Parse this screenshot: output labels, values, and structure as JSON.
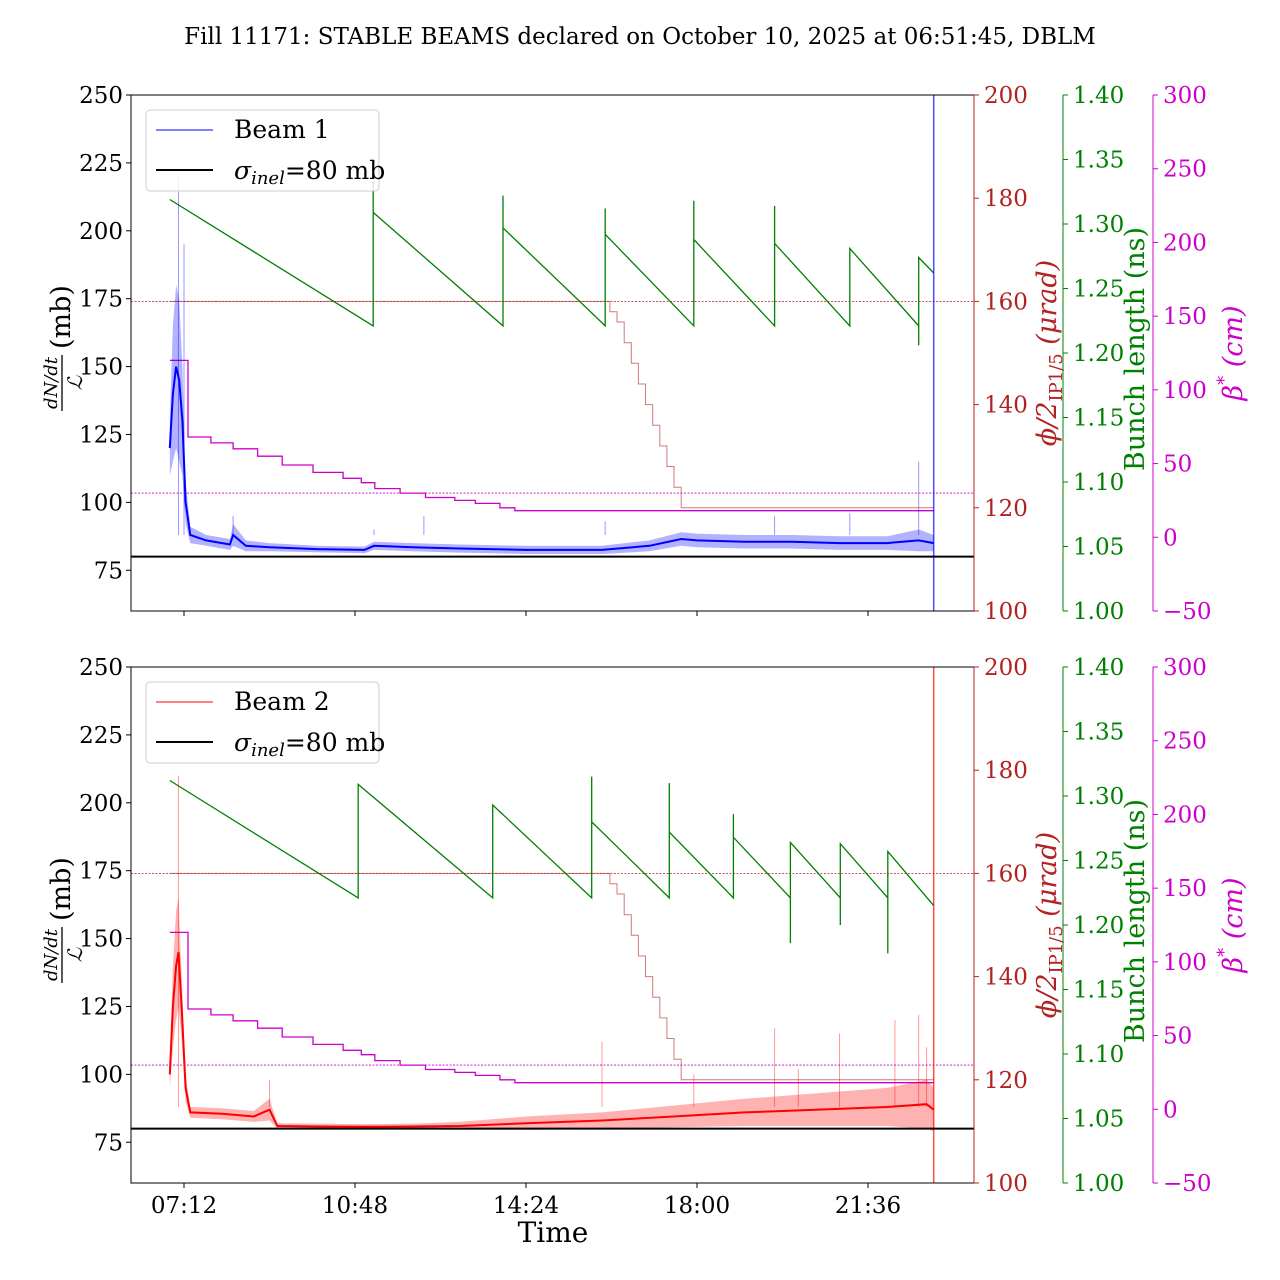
{
  "title": "Fill 11171: STABLE BEAMS declared on October 10, 2025 at 06:51:45, DBLM",
  "colors": {
    "beam1": "#0000ff",
    "beam2": "#ff0000",
    "crossing": "#b22222",
    "bunch": "#008000",
    "beta": "#cc00cc",
    "sigma": "#000000"
  },
  "axes": {
    "x": {
      "label": "Time",
      "ticks": [
        "07:12",
        "10:48",
        "14:24",
        "18:00",
        "21:36"
      ]
    },
    "left": {
      "label_num": "dN/dt",
      "label_den": "ℒ",
      "label_unit": "(mb)",
      "ylim": [
        60,
        250
      ],
      "ticks": [
        "75",
        "100",
        "125",
        "150",
        "175",
        "200",
        "225",
        "250"
      ]
    },
    "crossing": {
      "label_main": "ϕ/2",
      "label_sub": "IP1/5",
      "label_unit": "(μrad)",
      "ylim": [
        100,
        200
      ],
      "ticks": [
        "100",
        "120",
        "140",
        "160",
        "180",
        "200"
      ]
    },
    "bunch": {
      "label": "Bunch length (ns)",
      "ylim": [
        1.0,
        1.4
      ],
      "ticks": [
        "1.00",
        "1.05",
        "1.10",
        "1.15",
        "1.20",
        "1.25",
        "1.30",
        "1.35",
        "1.40"
      ]
    },
    "beta": {
      "label_main": "β",
      "label_sup": "*",
      "label_unit": "(cm)",
      "ylim": [
        -50,
        300
      ],
      "ticks": [
        "−50",
        "0",
        "50",
        "100",
        "150",
        "200",
        "250",
        "300"
      ]
    }
  },
  "chart_data": [
    {
      "type": "line",
      "panel": "top",
      "legend": {
        "placement": "upper-left",
        "beam": "Beam 1",
        "sigma_symbol": "σ",
        "sigma_sub": "inel",
        "sigma_rest": "=80 mb"
      },
      "reference_lines": {
        "sigma_inel_mb": 80,
        "crossing_urad": 160,
        "beta_cm": 30
      },
      "beam": {
        "name": "Beam 1",
        "color_key": "beam1",
        "end_marker": "22:59",
        "points": [
          [
            "06:54",
            120,
            10
          ],
          [
            "06:58",
            140,
            25
          ],
          [
            "07:02",
            150,
            30
          ],
          [
            "07:06",
            145,
            30
          ],
          [
            "07:10",
            130,
            20
          ],
          [
            "07:14",
            100,
            8
          ],
          [
            "07:20",
            88,
            3
          ],
          [
            "07:40",
            86,
            2
          ],
          [
            "08:10",
            84.5,
            2
          ],
          [
            "08:14",
            88,
            4
          ],
          [
            "08:30",
            84,
            2
          ],
          [
            "09:00",
            83.5,
            1.5
          ],
          [
            "10:00",
            82.8,
            1.2
          ],
          [
            "11:00",
            82.5,
            1.2
          ],
          [
            "11:12",
            84,
            1.5
          ],
          [
            "12:00",
            83.5,
            1.5
          ],
          [
            "13:00",
            83,
            1.5
          ],
          [
            "14:24",
            82.5,
            1.5
          ],
          [
            "16:00",
            82.5,
            1.5
          ],
          [
            "17:00",
            84,
            2
          ],
          [
            "17:40",
            86.5,
            2.5
          ],
          [
            "18:00",
            86,
            2.5
          ],
          [
            "19:00",
            85.5,
            2.5
          ],
          [
            "20:00",
            85.5,
            2.5
          ],
          [
            "21:00",
            85,
            2.5
          ],
          [
            "22:00",
            85,
            2.5
          ],
          [
            "22:40",
            86,
            4
          ],
          [
            "22:59",
            85,
            3
          ]
        ],
        "spikes": [
          [
            "07:05",
            220
          ],
          [
            "07:12",
            195
          ],
          [
            "08:14",
            95
          ],
          [
            "11:12",
            90
          ],
          [
            "12:15",
            95
          ],
          [
            "16:04",
            93
          ],
          [
            "19:38",
            95
          ],
          [
            "21:13",
            96
          ],
          [
            "22:40",
            115
          ]
        ]
      },
      "bunch_length": [
        [
          "06:54",
          1.319
        ],
        [
          "11:11",
          1.221
        ],
        [
          "11:11",
          1.333
        ],
        [
          "11:11",
          1.309
        ],
        [
          "13:55",
          1.221
        ],
        [
          "13:55",
          1.322
        ],
        [
          "13:55",
          1.297
        ],
        [
          "16:04",
          1.221
        ],
        [
          "16:04",
          1.312
        ],
        [
          "16:04",
          1.292
        ],
        [
          "17:56",
          1.221
        ],
        [
          "17:56",
          1.318
        ],
        [
          "17:56",
          1.288
        ],
        [
          "19:38",
          1.221
        ],
        [
          "19:38",
          1.314
        ],
        [
          "19:38",
          1.285
        ],
        [
          "21:13",
          1.221
        ],
        [
          "21:13",
          1.281
        ],
        [
          "22:40",
          1.221
        ],
        [
          "22:40",
          1.206
        ],
        [
          "22:40",
          1.274
        ],
        [
          "22:59",
          1.262
        ]
      ],
      "crossing_angle": [
        [
          "06:54",
          160
        ],
        [
          "16:10",
          158
        ],
        [
          "16:19",
          156
        ],
        [
          "16:28",
          152
        ],
        [
          "16:37",
          148
        ],
        [
          "16:46",
          144
        ],
        [
          "16:55",
          140
        ],
        [
          "17:04",
          136
        ],
        [
          "17:13",
          132
        ],
        [
          "17:22",
          128
        ],
        [
          "17:31",
          124
        ],
        [
          "17:40",
          120
        ],
        [
          "22:59",
          120
        ]
      ],
      "beta_star": [
        [
          "06:54",
          120
        ],
        [
          "07:17",
          68
        ],
        [
          "07:46",
          64
        ],
        [
          "08:14",
          60
        ],
        [
          "08:45",
          55
        ],
        [
          "09:16",
          49
        ],
        [
          "09:55",
          44
        ],
        [
          "10:33",
          40
        ],
        [
          "10:56",
          37
        ],
        [
          "11:13",
          33
        ],
        [
          "11:45",
          30
        ],
        [
          "12:17",
          27
        ],
        [
          "12:54",
          25
        ],
        [
          "13:20",
          23
        ],
        [
          "13:51",
          20
        ],
        [
          "14:10",
          18
        ],
        [
          "22:59",
          18
        ]
      ]
    },
    {
      "type": "line",
      "panel": "bottom",
      "legend": {
        "placement": "upper-left",
        "beam": "Beam 2",
        "sigma_symbol": "σ",
        "sigma_sub": "inel",
        "sigma_rest": "=80 mb"
      },
      "reference_lines": {
        "sigma_inel_mb": 80,
        "crossing_urad": 160,
        "beta_cm": 30
      },
      "beam": {
        "name": "Beam 2",
        "color_key": "beam2",
        "end_marker": "22:59",
        "points": [
          [
            "06:54",
            100,
            5
          ],
          [
            "06:58",
            125,
            15
          ],
          [
            "07:02",
            140,
            20
          ],
          [
            "07:05",
            145,
            20
          ],
          [
            "07:09",
            125,
            12
          ],
          [
            "07:14",
            95,
            5
          ],
          [
            "07:20",
            86,
            2
          ],
          [
            "08:00",
            85.5,
            2
          ],
          [
            "08:40",
            84.5,
            2
          ],
          [
            "09:00",
            87,
            4
          ],
          [
            "09:10",
            81,
            1
          ],
          [
            "10:00",
            80.8,
            1
          ],
          [
            "11:00",
            80.7,
            1
          ],
          [
            "12:00",
            80.8,
            1
          ],
          [
            "13:00",
            81,
            1.5
          ],
          [
            "14:24",
            82,
            2.5
          ],
          [
            "16:00",
            83,
            3
          ],
          [
            "17:30",
            84.5,
            4
          ],
          [
            "19:00",
            86,
            5
          ],
          [
            "20:30",
            87,
            6
          ],
          [
            "22:00",
            88,
            7
          ],
          [
            "22:50",
            89,
            9
          ],
          [
            "22:59",
            87,
            8
          ]
        ],
        "spikes": [
          [
            "07:05",
            210
          ],
          [
            "09:00",
            98
          ],
          [
            "16:00",
            112
          ],
          [
            "17:56",
            100
          ],
          [
            "19:38",
            117
          ],
          [
            "20:08",
            102
          ],
          [
            "21:00",
            115
          ],
          [
            "22:10",
            120
          ],
          [
            "22:40",
            122
          ],
          [
            "22:50",
            110
          ]
        ]
      },
      "bunch_length": [
        [
          "06:54",
          1.312
        ],
        [
          "10:52",
          1.221
        ],
        [
          "10:52",
          1.309
        ],
        [
          "13:42",
          1.221
        ],
        [
          "13:42",
          1.293
        ],
        [
          "15:47",
          1.221
        ],
        [
          "15:47",
          1.315
        ],
        [
          "15:47",
          1.28
        ],
        [
          "17:25",
          1.221
        ],
        [
          "17:25",
          1.31
        ],
        [
          "17:25",
          1.272
        ],
        [
          "18:46",
          1.221
        ],
        [
          "18:46",
          1.286
        ],
        [
          "18:46",
          1.268
        ],
        [
          "19:58",
          1.221
        ],
        [
          "19:58",
          1.186
        ],
        [
          "19:58",
          1.264
        ],
        [
          "21:01",
          1.221
        ],
        [
          "21:01",
          1.2
        ],
        [
          "21:01",
          1.263
        ],
        [
          "22:01",
          1.221
        ],
        [
          "22:01",
          1.178
        ],
        [
          "22:01",
          1.257
        ],
        [
          "22:59",
          1.215
        ]
      ],
      "crossing_angle": [
        [
          "06:54",
          160
        ],
        [
          "16:10",
          158
        ],
        [
          "16:19",
          156
        ],
        [
          "16:28",
          152
        ],
        [
          "16:37",
          148
        ],
        [
          "16:46",
          144
        ],
        [
          "16:55",
          140
        ],
        [
          "17:04",
          136
        ],
        [
          "17:13",
          132
        ],
        [
          "17:22",
          128
        ],
        [
          "17:31",
          124
        ],
        [
          "17:40",
          120
        ],
        [
          "22:59",
          120
        ]
      ],
      "beta_star": [
        [
          "06:54",
          120
        ],
        [
          "07:17",
          68
        ],
        [
          "07:46",
          64
        ],
        [
          "08:14",
          60
        ],
        [
          "08:45",
          55
        ],
        [
          "09:16",
          49
        ],
        [
          "09:55",
          44
        ],
        [
          "10:33",
          40
        ],
        [
          "10:56",
          37
        ],
        [
          "11:13",
          33
        ],
        [
          "11:45",
          30
        ],
        [
          "12:17",
          27
        ],
        [
          "12:54",
          25
        ],
        [
          "13:20",
          23
        ],
        [
          "13:51",
          20
        ],
        [
          "14:10",
          18
        ],
        [
          "22:59",
          18
        ]
      ]
    }
  ]
}
